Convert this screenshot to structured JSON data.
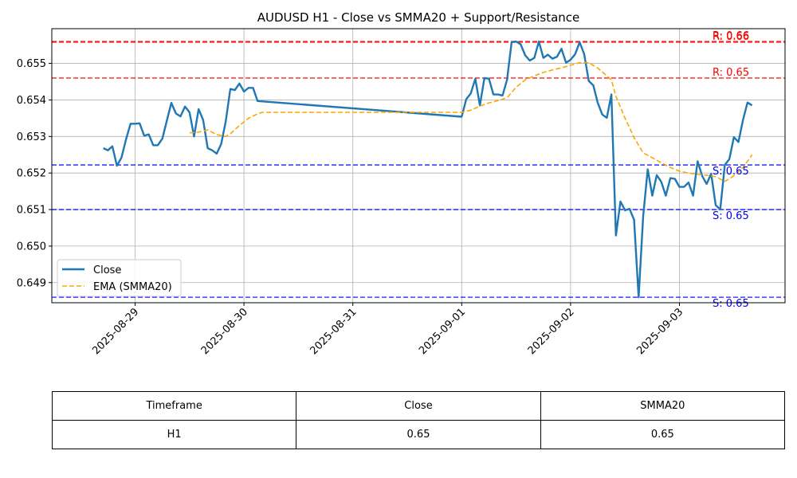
{
  "chart_data": {
    "type": "line",
    "title": "AUDUSD H1 - Close vs SMMA20 + Support/Resistance",
    "xlabel": "",
    "ylabel": "",
    "x_ticks": [
      "2025-08-29",
      "2025-08-30",
      "2025-08-31",
      "2025-09-01",
      "2025-09-02",
      "2025-09-03"
    ],
    "y_ticks": [
      "0.649",
      "0.650",
      "0.651",
      "0.652",
      "0.653",
      "0.654",
      "0.655"
    ],
    "ylim": [
      0.64845,
      0.65595
    ],
    "grid": true,
    "legend_position": "lower-left",
    "colors": {
      "close": "#1f77b4",
      "ema": "#ffa500",
      "resistance": "#ff0000",
      "support": "#0000ff"
    },
    "series": [
      {
        "name": "Close",
        "style": "solid",
        "points": [
          [
            "2025-08-28 17:00",
            0.65268
          ],
          [
            "2025-08-28 18:00",
            0.65262
          ],
          [
            "2025-08-28 19:00",
            0.65273
          ],
          [
            "2025-08-28 20:00",
            0.6522
          ],
          [
            "2025-08-28 21:00",
            0.65242
          ],
          [
            "2025-08-28 22:00",
            0.65292
          ],
          [
            "2025-08-28 23:00",
            0.65335
          ],
          [
            "2025-08-29 00:00",
            0.65335
          ],
          [
            "2025-08-29 01:00",
            0.65336
          ],
          [
            "2025-08-29 02:00",
            0.65302
          ],
          [
            "2025-08-29 03:00",
            0.65306
          ],
          [
            "2025-08-29 04:00",
            0.65276
          ],
          [
            "2025-08-29 05:00",
            0.65276
          ],
          [
            "2025-08-29 06:00",
            0.65294
          ],
          [
            "2025-08-29 07:00",
            0.65343
          ],
          [
            "2025-08-29 08:00",
            0.65392
          ],
          [
            "2025-08-29 09:00",
            0.65363
          ],
          [
            "2025-08-29 10:00",
            0.65355
          ],
          [
            "2025-08-29 11:00",
            0.65382
          ],
          [
            "2025-08-29 12:00",
            0.65366
          ],
          [
            "2025-08-29 13:00",
            0.653
          ],
          [
            "2025-08-29 14:00",
            0.65375
          ],
          [
            "2025-08-29 15:00",
            0.65345
          ],
          [
            "2025-08-29 16:00",
            0.65268
          ],
          [
            "2025-08-29 17:00",
            0.65262
          ],
          [
            "2025-08-29 18:00",
            0.65253
          ],
          [
            "2025-08-29 19:00",
            0.6528
          ],
          [
            "2025-08-29 20:00",
            0.65342
          ],
          [
            "2025-08-29 21:00",
            0.6543
          ],
          [
            "2025-08-29 22:00",
            0.65427
          ],
          [
            "2025-08-29 23:00",
            0.65445
          ],
          [
            "2025-08-30 00:00",
            0.65423
          ],
          [
            "2025-08-30 01:00",
            0.65433
          ],
          [
            "2025-08-30 02:00",
            0.65433
          ],
          [
            "2025-08-30 03:00",
            0.65397
          ],
          [
            "2025-09-01 00:00",
            0.65354
          ],
          [
            "2025-09-01 01:00",
            0.65402
          ],
          [
            "2025-09-01 02:00",
            0.65418
          ],
          [
            "2025-09-01 03:00",
            0.65458
          ],
          [
            "2025-09-01 04:00",
            0.65385
          ],
          [
            "2025-09-01 05:00",
            0.6546
          ],
          [
            "2025-09-01 06:00",
            0.65458
          ],
          [
            "2025-09-01 07:00",
            0.65415
          ],
          [
            "2025-09-01 08:00",
            0.65415
          ],
          [
            "2025-09-01 09:00",
            0.65412
          ],
          [
            "2025-09-01 10:00",
            0.65455
          ],
          [
            "2025-09-01 11:00",
            0.65558
          ],
          [
            "2025-09-01 12:00",
            0.6556
          ],
          [
            "2025-09-01 13:00",
            0.65552
          ],
          [
            "2025-09-01 14:00",
            0.65522
          ],
          [
            "2025-09-01 15:00",
            0.65508
          ],
          [
            "2025-09-01 16:00",
            0.65515
          ],
          [
            "2025-09-01 17:00",
            0.6556
          ],
          [
            "2025-09-01 18:00",
            0.65515
          ],
          [
            "2025-09-01 19:00",
            0.65524
          ],
          [
            "2025-09-01 20:00",
            0.65513
          ],
          [
            "2025-09-01 21:00",
            0.65518
          ],
          [
            "2025-09-01 22:00",
            0.6554
          ],
          [
            "2025-09-01 23:00",
            0.65502
          ],
          [
            "2025-09-02 00:00",
            0.6551
          ],
          [
            "2025-09-02 01:00",
            0.65525
          ],
          [
            "2025-09-02 02:00",
            0.65558
          ],
          [
            "2025-09-02 03:00",
            0.65525
          ],
          [
            "2025-09-02 04:00",
            0.65452
          ],
          [
            "2025-09-02 05:00",
            0.6544
          ],
          [
            "2025-09-02 06:00",
            0.65392
          ],
          [
            "2025-09-02 07:00",
            0.6536
          ],
          [
            "2025-09-02 08:00",
            0.65351
          ],
          [
            "2025-09-02 09:00",
            0.65415
          ],
          [
            "2025-09-02 10:00",
            0.65029
          ],
          [
            "2025-09-02 11:00",
            0.65122
          ],
          [
            "2025-09-02 12:00",
            0.65098
          ],
          [
            "2025-09-02 13:00",
            0.65102
          ],
          [
            "2025-09-02 14:00",
            0.65072
          ],
          [
            "2025-09-02 15:00",
            0.6486
          ],
          [
            "2025-09-02 16:00",
            0.65082
          ],
          [
            "2025-09-02 17:00",
            0.6521
          ],
          [
            "2025-09-02 18:00",
            0.65138
          ],
          [
            "2025-09-02 19:00",
            0.65194
          ],
          [
            "2025-09-02 20:00",
            0.65176
          ],
          [
            "2025-09-02 21:00",
            0.65138
          ],
          [
            "2025-09-02 22:00",
            0.65186
          ],
          [
            "2025-09-02 23:00",
            0.65184
          ],
          [
            "2025-09-03 00:00",
            0.65162
          ],
          [
            "2025-09-03 01:00",
            0.65162
          ],
          [
            "2025-09-03 02:00",
            0.65174
          ],
          [
            "2025-09-03 03:00",
            0.65138
          ],
          [
            "2025-09-03 04:00",
            0.65232
          ],
          [
            "2025-09-03 05:00",
            0.65192
          ],
          [
            "2025-09-03 06:00",
            0.6517
          ],
          [
            "2025-09-03 07:00",
            0.65198
          ],
          [
            "2025-09-03 08:00",
            0.65112
          ],
          [
            "2025-09-03 09:00",
            0.651
          ],
          [
            "2025-09-03 10:00",
            0.65222
          ],
          [
            "2025-09-03 11:00",
            0.65238
          ],
          [
            "2025-09-03 12:00",
            0.65298
          ],
          [
            "2025-09-03 13:00",
            0.65285
          ],
          [
            "2025-09-03 14:00",
            0.65345
          ],
          [
            "2025-09-03 15:00",
            0.65393
          ],
          [
            "2025-09-03 16:00",
            0.65385
          ]
        ]
      },
      {
        "name": "EMA (SMMA20)",
        "style": "dashed",
        "points": [
          [
            "2025-08-29 12:00",
            0.6531
          ],
          [
            "2025-08-29 14:00",
            0.65312
          ],
          [
            "2025-08-29 16:00",
            0.65318
          ],
          [
            "2025-08-29 18:00",
            0.65305
          ],
          [
            "2025-08-29 20:00",
            0.653
          ],
          [
            "2025-08-29 21:00",
            0.65307
          ],
          [
            "2025-08-29 23:00",
            0.6533
          ],
          [
            "2025-08-30 01:00",
            0.6535
          ],
          [
            "2025-08-30 03:00",
            0.65362
          ],
          [
            "2025-08-30 04:00",
            0.65366
          ],
          [
            "2025-09-01 00:00",
            0.65366
          ],
          [
            "2025-09-01 02:00",
            0.65372
          ],
          [
            "2025-09-01 04:00",
            0.65383
          ],
          [
            "2025-09-01 06:00",
            0.65392
          ],
          [
            "2025-09-01 08:00",
            0.65398
          ],
          [
            "2025-09-01 10:00",
            0.65406
          ],
          [
            "2025-09-01 12:00",
            0.65435
          ],
          [
            "2025-09-01 14:00",
            0.65455
          ],
          [
            "2025-09-01 16:00",
            0.65466
          ],
          [
            "2025-09-01 18:00",
            0.65475
          ],
          [
            "2025-09-01 20:00",
            0.65482
          ],
          [
            "2025-09-01 22:00",
            0.65488
          ],
          [
            "2025-09-02 00:00",
            0.65495
          ],
          [
            "2025-09-02 02:00",
            0.65502
          ],
          [
            "2025-09-02 04:00",
            0.65502
          ],
          [
            "2025-09-02 06:00",
            0.65487
          ],
          [
            "2025-09-02 08:00",
            0.65466
          ],
          [
            "2025-09-02 09:00",
            0.65455
          ],
          [
            "2025-09-02 10:00",
            0.6541
          ],
          [
            "2025-09-02 12:00",
            0.6535
          ],
          [
            "2025-09-02 14:00",
            0.65297
          ],
          [
            "2025-09-02 16:00",
            0.65255
          ],
          [
            "2025-09-02 18:00",
            0.65242
          ],
          [
            "2025-09-02 20:00",
            0.65228
          ],
          [
            "2025-09-02 22:00",
            0.65215
          ],
          [
            "2025-09-03 00:00",
            0.65205
          ],
          [
            "2025-09-03 02:00",
            0.652
          ],
          [
            "2025-09-03 04:00",
            0.65196
          ],
          [
            "2025-09-03 06:00",
            0.65194
          ],
          [
            "2025-09-03 08:00",
            0.6519
          ],
          [
            "2025-09-03 10:00",
            0.65177
          ],
          [
            "2025-09-03 12:00",
            0.65192
          ],
          [
            "2025-09-03 14:00",
            0.65215
          ],
          [
            "2025-09-03 16:00",
            0.6525
          ]
        ]
      }
    ],
    "levels": [
      {
        "kind": "resistance",
        "value": 0.65558,
        "label": "R: 0.66"
      },
      {
        "kind": "resistance",
        "value": 0.6556,
        "label": "R: 0.66"
      },
      {
        "kind": "resistance",
        "value": 0.6546,
        "label": "R: 0.65"
      },
      {
        "kind": "support",
        "value": 0.65222,
        "label": "S: 0.65"
      },
      {
        "kind": "support",
        "value": 0.651,
        "label": "S: 0.65"
      },
      {
        "kind": "support",
        "value": 0.6486,
        "label": "S: 0.65"
      }
    ]
  },
  "table": {
    "headers": [
      "Timeframe",
      "Close",
      "SMMA20"
    ],
    "rows": [
      [
        "H1",
        "0.65",
        "0.65"
      ]
    ]
  }
}
